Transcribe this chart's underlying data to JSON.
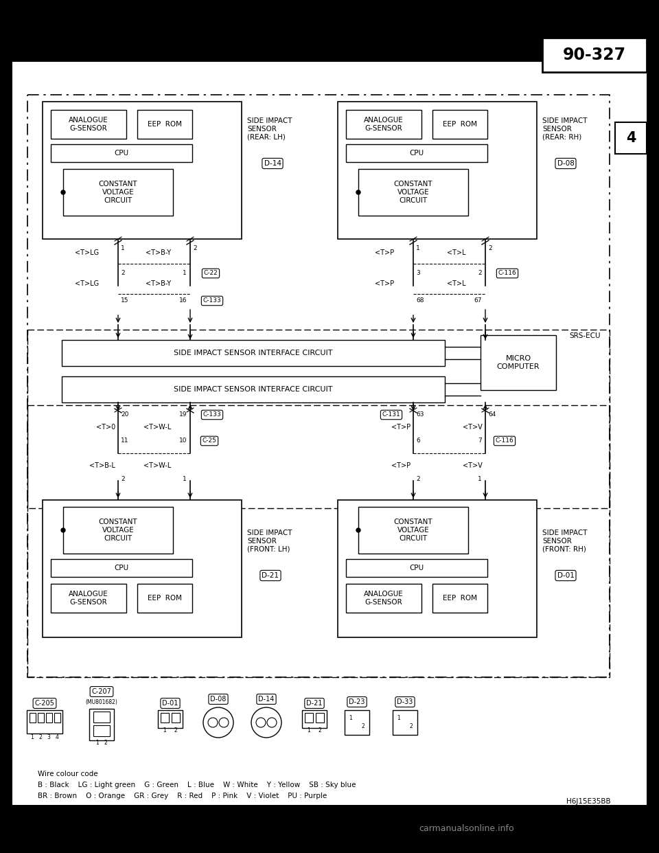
{
  "bg_color": "#000000",
  "page_number": "90-327",
  "section_number": "4",
  "figure_code": "H6J15E35BB",
  "wire_color_line1": "Wire colour code",
  "wire_color_line2": "B : Black    LG : Light green    G : Green    L : Blue    W : White    Y : Yellow    SB : Sky blue",
  "wire_color_line3": "BR : Brown    O : Orange    GR : Grey    R : Red    P : Pink    V : Violet    PU : Purple"
}
